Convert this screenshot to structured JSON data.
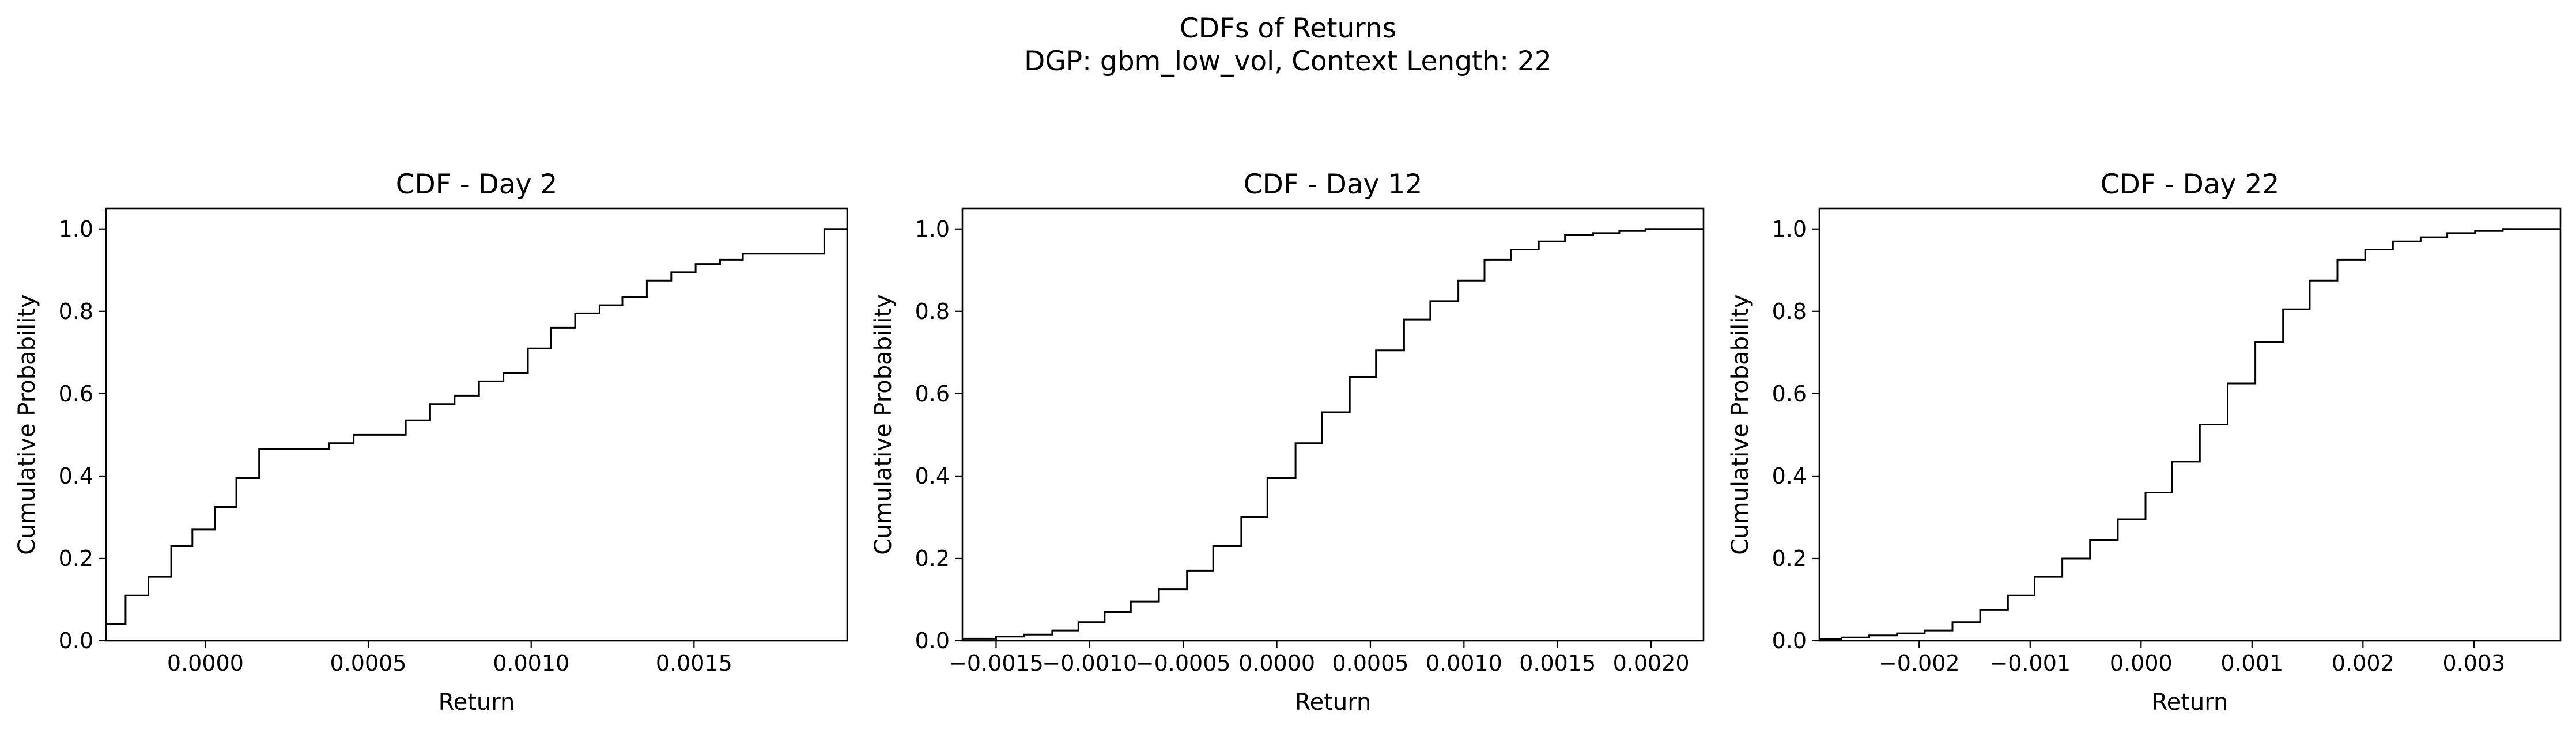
{
  "figure": {
    "suptitle_line1": "CDFs of Returns",
    "suptitle_line2": "DGP: gbm_low_vol, Context Length: 22"
  },
  "chart_data": [
    {
      "type": "line",
      "step": true,
      "title": "CDF - Day 2",
      "xlabel": "Return",
      "ylabel": "Cumulative Probability",
      "xlim": [
        -0.000305,
        0.00197
      ],
      "ylim": [
        0.0,
        1.05
      ],
      "xticks": [
        0.0,
        0.0005,
        0.001,
        0.0015
      ],
      "xtick_labels": [
        "0.0000",
        "0.0005",
        "0.0010",
        "0.0015"
      ],
      "yticks": [
        0.0,
        0.2,
        0.4,
        0.6,
        0.8,
        1.0
      ],
      "ytick_labels": [
        "0.0",
        "0.2",
        "0.4",
        "0.6",
        "0.8",
        "1.0"
      ],
      "line_color": "#000000",
      "series": [
        {
          "x": [
            -0.000305,
            -0.000245,
            -0.000175,
            -0.000105,
            -4e-05,
            3e-05,
            9.5e-05,
            0.000165,
            0.00024,
            0.00038,
            0.000455,
            0.000615,
            0.00069,
            0.000765,
            0.00084,
            0.000915,
            0.00099,
            0.00106,
            0.001135,
            0.00121,
            0.00128,
            0.001355,
            0.00143,
            0.001505,
            0.00158,
            0.00165,
            0.001725,
            0.0019,
            0.00197
          ],
          "y": [
            0.04,
            0.11,
            0.155,
            0.23,
            0.27,
            0.325,
            0.395,
            0.465,
            0.465,
            0.48,
            0.5,
            0.535,
            0.575,
            0.595,
            0.63,
            0.65,
            0.71,
            0.76,
            0.795,
            0.815,
            0.835,
            0.875,
            0.895,
            0.915,
            0.925,
            0.94,
            0.94,
            1.0,
            1.0
          ]
        }
      ]
    },
    {
      "type": "line",
      "step": true,
      "title": "CDF - Day 12",
      "xlabel": "Return",
      "ylabel": "Cumulative Probability",
      "xlim": [
        -0.00168,
        0.00228
      ],
      "ylim": [
        0.0,
        1.05
      ],
      "xticks": [
        -0.0015,
        -0.001,
        -0.0005,
        0.0,
        0.0005,
        0.001,
        0.0015,
        0.002
      ],
      "xtick_labels": [
        "−0.0015",
        "−0.0010",
        "−0.0005",
        "0.0000",
        "0.0005",
        "0.0010",
        "0.0015",
        "0.0020"
      ],
      "yticks": [
        0.0,
        0.2,
        0.4,
        0.6,
        0.8,
        1.0
      ],
      "ytick_labels": [
        "0.0",
        "0.2",
        "0.4",
        "0.6",
        "0.8",
        "1.0"
      ],
      "line_color": "#000000",
      "series": [
        {
          "x": [
            -0.00168,
            -0.0015,
            -0.00135,
            -0.0012,
            -0.00106,
            -0.00092,
            -0.00078,
            -0.00063,
            -0.00048,
            -0.00034,
            -0.00019,
            -5e-05,
            0.0001,
            0.00024,
            0.00039,
            0.00053,
            0.00068,
            0.00082,
            0.00097,
            0.00111,
            0.00125,
            0.0014,
            0.00154,
            0.00169,
            0.00183,
            0.00197,
            0.00228
          ],
          "y": [
            0.005,
            0.01,
            0.015,
            0.025,
            0.045,
            0.07,
            0.095,
            0.125,
            0.17,
            0.23,
            0.3,
            0.395,
            0.48,
            0.555,
            0.64,
            0.705,
            0.78,
            0.825,
            0.875,
            0.925,
            0.95,
            0.97,
            0.985,
            0.99,
            0.995,
            1.0,
            1.0
          ]
        }
      ]
    },
    {
      "type": "line",
      "step": true,
      "title": "CDF - Day 22",
      "xlabel": "Return",
      "ylabel": "Cumulative Probability",
      "xlim": [
        -0.0029,
        0.00378
      ],
      "ylim": [
        0.0,
        1.05
      ],
      "xticks": [
        -0.002,
        -0.001,
        0.0,
        0.001,
        0.002,
        0.003
      ],
      "xtick_labels": [
        "−0.002",
        "−0.001",
        "0.000",
        "0.001",
        "0.002",
        "0.003"
      ],
      "yticks": [
        0.0,
        0.2,
        0.4,
        0.6,
        0.8,
        1.0
      ],
      "ytick_labels": [
        "0.0",
        "0.2",
        "0.4",
        "0.6",
        "0.8",
        "1.0"
      ],
      "line_color": "#000000",
      "series": [
        {
          "x": [
            -0.0029,
            -0.0027,
            -0.00245,
            -0.0022,
            -0.00195,
            -0.0017,
            -0.00145,
            -0.0012,
            -0.00096,
            -0.00071,
            -0.00046,
            -0.00021,
            4e-05,
            0.00028,
            0.00053,
            0.00078,
            0.00103,
            0.00128,
            0.00152,
            0.00177,
            0.00202,
            0.00227,
            0.00252,
            0.00276,
            0.00301,
            0.00326,
            0.00378
          ],
          "y": [
            0.004,
            0.008,
            0.013,
            0.018,
            0.025,
            0.045,
            0.075,
            0.11,
            0.155,
            0.2,
            0.245,
            0.295,
            0.36,
            0.435,
            0.525,
            0.625,
            0.725,
            0.805,
            0.875,
            0.925,
            0.95,
            0.97,
            0.98,
            0.99,
            0.995,
            1.0,
            1.0
          ]
        }
      ]
    }
  ]
}
